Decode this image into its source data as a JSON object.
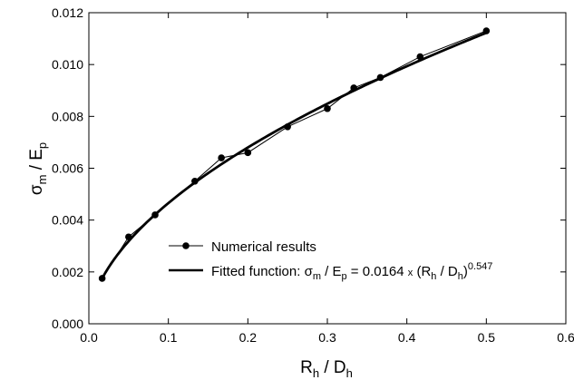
{
  "chart_data": {
    "type": "line",
    "x_ticks": [
      "0.0",
      "0.1",
      "0.2",
      "0.3",
      "0.4",
      "0.5",
      "0.6"
    ],
    "y_ticks": [
      "0.000",
      "0.002",
      "0.004",
      "0.006",
      "0.008",
      "0.010",
      "0.012"
    ],
    "xlim": [
      0,
      0.6
    ],
    "ylim": [
      0,
      0.012
    ],
    "xlabel": {
      "main": "R",
      "sub": "h",
      "sep": " / D",
      "sub2": "h"
    },
    "ylabel": {
      "main": "σ",
      "sub": "m",
      "sep": " / E",
      "sub2": "p"
    },
    "grid": false,
    "legend_position": "bottom-center",
    "series": [
      {
        "name": "Numerical results",
        "style": "line-with-markers",
        "x": [
          0.0167,
          0.05,
          0.0833,
          0.1333,
          0.1667,
          0.2,
          0.25,
          0.3,
          0.3333,
          0.3667,
          0.4167,
          0.5
        ],
        "y": [
          0.00175,
          0.00335,
          0.0042,
          0.0055,
          0.0064,
          0.0066,
          0.0076,
          0.0083,
          0.0091,
          0.0095,
          0.0103,
          0.0113
        ]
      },
      {
        "name": "Fitted function: σm / Ep = 0.0164 x (Rh / Dh)0.547",
        "style": "thick-line",
        "coefficient": 0.0164,
        "exponent": 0.547,
        "x_range": [
          0.0167,
          0.5
        ]
      }
    ],
    "legend": {
      "numerical": "Numerical results",
      "fit_prefix": "Fitted function: ",
      "fit_sigma": "σ",
      "fit_sub1": "m",
      "fit_mid": " / E",
      "fit_sub2": "p",
      "fit_eq": " = 0.0164 ",
      "fit_x": "x",
      "fit_paren": " (R",
      "fit_sub3": "h",
      "fit_slash": " / D",
      "fit_sub4": "h",
      "fit_close": ")",
      "fit_exp": "0.547"
    }
  }
}
